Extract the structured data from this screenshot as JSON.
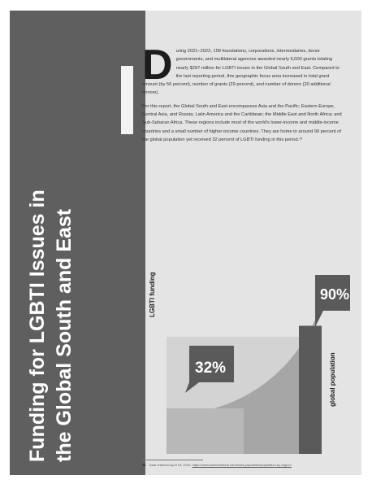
{
  "sidebar": {
    "title_line1": "Funding for LGBTI Issues in",
    "title_line2": "the Global South and East"
  },
  "body": {
    "dropcap": "D",
    "para1": "uring 2021–2022, 158 foundations, corporations, intermediaries, donor governments, and multilateral agencies awarded nearly 6,000 grants totaling nearly $287 million for LGBTI issues in the Global South and East. Compared to the last reporting period, this geographic focus area increased in total grant amount (by 56 percent), number of grants (29 percent), and number of donors (20 additional donors).",
    "para2": "For this report, the Global South and East encompasses Asia and the Pacific; Eastern Europe, Central Asia, and Russia; Latin America and the Caribbean; the Middle East and North Africa; and Sub-Saharan Africa. These regions include most of the world's lower-income and middle-income countries and a small number of higher-income countries. They are home to around 90 percent of the global population yet received 32 percent of LGBTI funding in this period.¹⁰"
  },
  "chart_data": {
    "type": "bar",
    "categories": [
      "LGBTI funding",
      "global population"
    ],
    "values": [
      32,
      90
    ],
    "value_labels": [
      "32%",
      "90%"
    ],
    "colors": {
      "left_panel": "#5f5f5f",
      "page_bg": "#e4e4e4",
      "bar": "#5a5a5a",
      "callout": "#5a5a5a"
    }
  },
  "footnote": {
    "number": "36",
    "text": "Data retrieved April 15, 2024.",
    "link": "https://www.worldometers.info/world-population/population-by-region/"
  }
}
